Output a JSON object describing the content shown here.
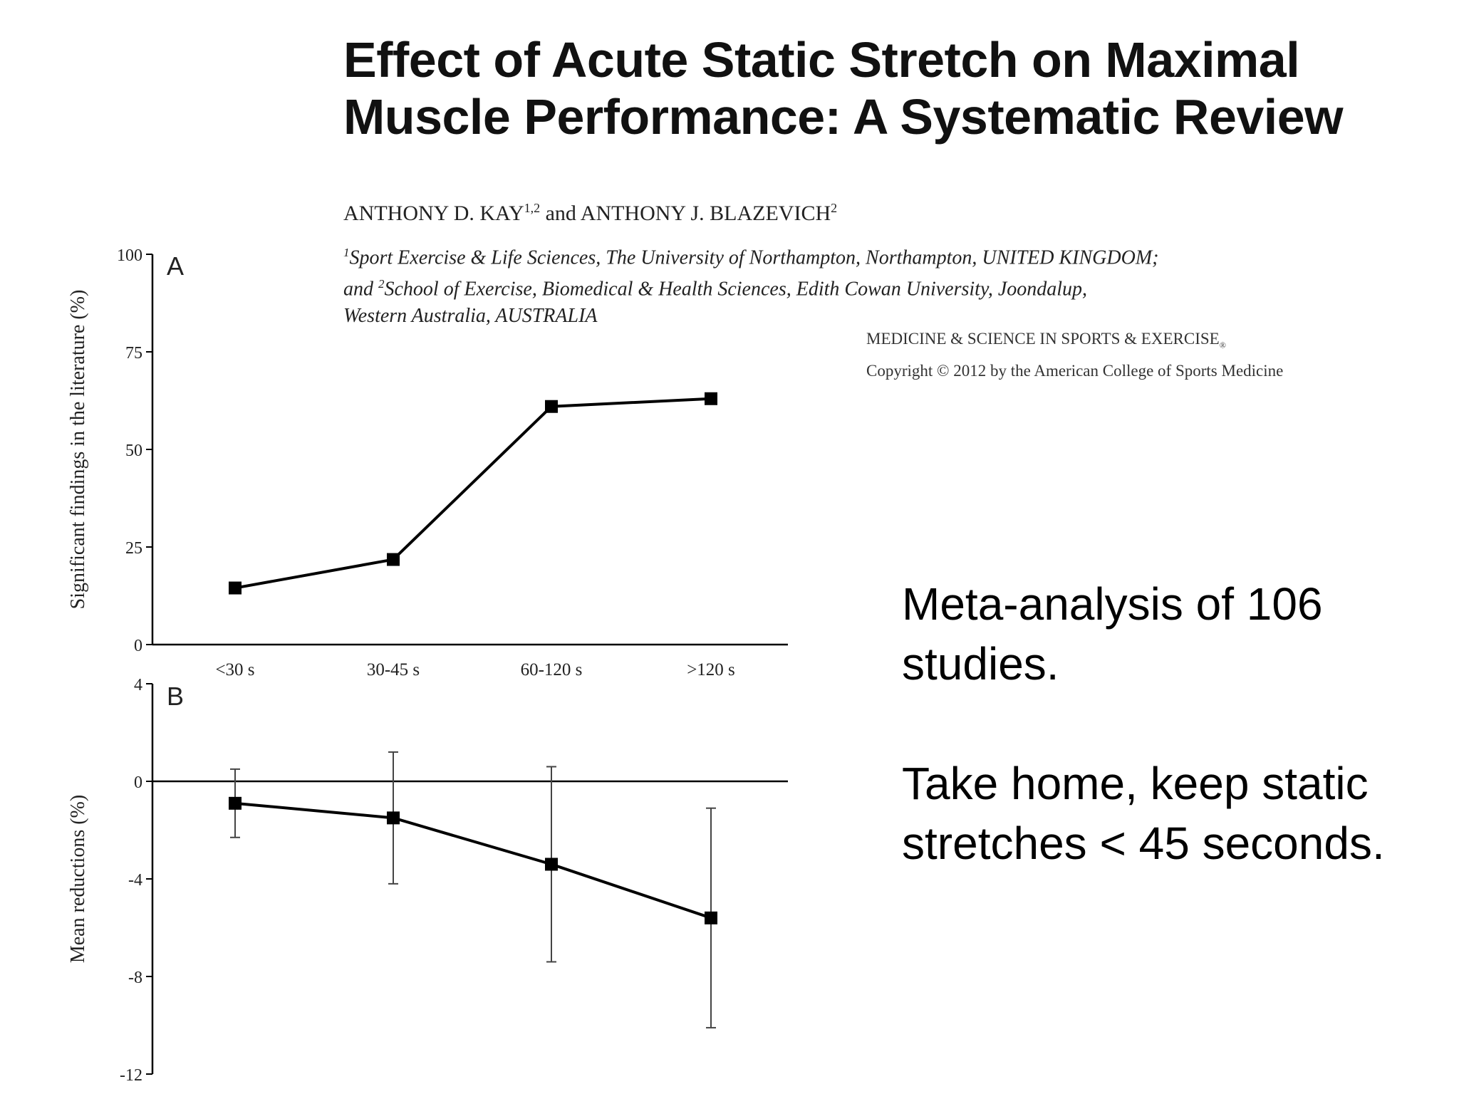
{
  "title": {
    "line1": "Effect of Acute Static Stretch on Maximal",
    "line2": "Muscle Performance: A Systematic Review"
  },
  "authors": {
    "author1": "ANTHONY D. KAY",
    "author1_sup": "1,2",
    "conjunction": " and ",
    "author2": "ANTHONY J. BLAZEVICH",
    "author2_sup": "2"
  },
  "affiliations": {
    "line1_sup": "1",
    "line1": "Sport Exercise & Life Sciences, The University of Northampton, Northampton, UNITED KINGDOM;",
    "line2_prefix": "and ",
    "line2_sup": "2",
    "line2": "School of Exercise, Biomedical & Health Sciences, Edith Cowan University, Joondalup,",
    "line3": "Western Australia, AUSTRALIA"
  },
  "journal": {
    "name": "MEDICINE & SCIENCE IN SPORTS & EXERCISE",
    "name_mark": "®",
    "copyright": "Copyright © 2012 by the American College of Sports Medicine"
  },
  "notes": {
    "point1": "Meta-analysis of 106 studies.",
    "point2": "Take home, keep static stretches < 45 seconds."
  },
  "chart_data": [
    {
      "type": "line",
      "panel_label": "A",
      "categories": [
        "<30 s",
        "30-45 s",
        "60-120 s",
        ">120 s"
      ],
      "values": [
        14.5,
        21.8,
        61,
        63
      ],
      "ylabel": "Significant findings in the literature (%)",
      "ylim": [
        0,
        100
      ],
      "yticks": [
        0,
        25,
        50,
        75,
        100
      ],
      "marker": "square",
      "color": "#000000",
      "grid": false
    },
    {
      "type": "line",
      "panel_label": "B",
      "categories": [
        "<30 s",
        "30-45 s",
        "60-120 s",
        ">120 s"
      ],
      "values": [
        -0.9,
        -1.5,
        -3.4,
        -5.6
      ],
      "error_upper": [
        0.5,
        1.2,
        0.6,
        -1.1
      ],
      "error_lower": [
        -2.3,
        -4.2,
        -7.4,
        -10.1
      ],
      "ylabel": "Mean reductions (%)",
      "ylim": [
        -12,
        4
      ],
      "yticks": [
        4,
        0,
        -4,
        -8,
        -12
      ],
      "reference_line": 0,
      "marker": "square",
      "color": "#000000",
      "grid": false
    }
  ]
}
